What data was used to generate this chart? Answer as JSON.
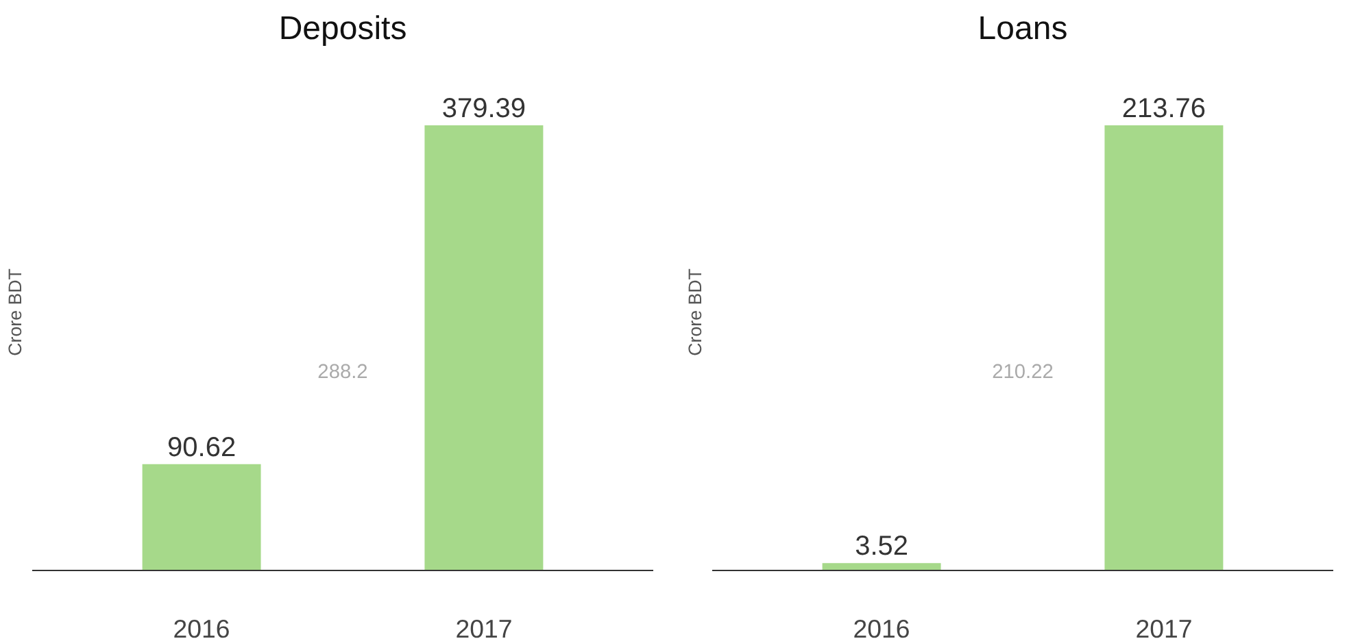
{
  "chart_data": [
    {
      "type": "bar",
      "title": "Deposits",
      "ylabel": "Crore BDT",
      "categories": [
        "2016",
        "2017"
      ],
      "values": [
        90.62,
        379.39
      ],
      "color": "#a6d98a",
      "data_labels": true,
      "grid": false,
      "annotations": [
        "288.2"
      ]
    },
    {
      "type": "bar",
      "title": "Loans",
      "ylabel": "Crore BDT",
      "categories": [
        "2016",
        "2017"
      ],
      "values": [
        3.52,
        213.76
      ],
      "color": "#a6d98a",
      "data_labels": true,
      "grid": false,
      "annotations": [
        "210.22"
      ]
    }
  ]
}
